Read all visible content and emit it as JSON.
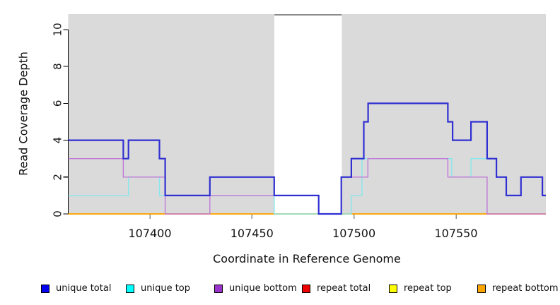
{
  "chart_data": {
    "type": "line",
    "subtype": "step-coverage",
    "title": "",
    "xlabel": "Coordinate in Reference Genome",
    "ylabel": "Read Coverage Depth",
    "x_range": [
      107360,
      107594
    ],
    "y_range": [
      0,
      10.84
    ],
    "x_ticks": [
      107400,
      107450,
      107500,
      107550
    ],
    "y_ticks": [
      0,
      2,
      4,
      6,
      8,
      10
    ],
    "grid": false,
    "legend_position": "bottom",
    "shaded_regions": [
      [
        107360,
        107461
      ],
      [
        107494,
        107594
      ]
    ],
    "gap_region": [
      107461,
      107494
    ],
    "colors": {
      "panel": "#DADADA",
      "gap_marker": "#8C8C8C",
      "x_tick": "#8C8C8C",
      "axis": "#000000",
      "background": "#FFFFFF"
    },
    "z_order": [
      "repeat total",
      "repeat top",
      "repeat bottom",
      "unique top",
      "unique bottom",
      "unique total"
    ],
    "series": [
      {
        "name": "unique total",
        "line_color": "#3030D2",
        "legend_color": "#0000EE",
        "line_width": 2.2,
        "steps": [
          [
            107360,
            4
          ],
          [
            107387,
            3
          ],
          [
            107389.5,
            4
          ],
          [
            107404.7,
            3
          ],
          [
            107407.5,
            1
          ],
          [
            107429.4,
            2
          ],
          [
            107460.9,
            1
          ],
          [
            107482.7,
            0
          ],
          [
            107493.8,
            2
          ],
          [
            107498.7,
            3
          ],
          [
            107504.8,
            5
          ],
          [
            107506.9,
            6
          ],
          [
            107546,
            5
          ],
          [
            107548.3,
            4
          ],
          [
            107557.3,
            5
          ],
          [
            107565.2,
            3
          ],
          [
            107569.8,
            2
          ],
          [
            107574.6,
            1
          ],
          [
            107581.8,
            2
          ],
          [
            107592.3,
            1
          ]
        ],
        "end_x": 107594
      },
      {
        "name": "unique top",
        "line_color": "#86E8EC",
        "legend_color": "#00FFFF",
        "line_width": 1.4,
        "steps": [
          [
            107360,
            1
          ],
          [
            107389.5,
            2
          ],
          [
            107404.7,
            1
          ],
          [
            107460.9,
            0
          ],
          [
            107498.7,
            1
          ],
          [
            107503.9,
            3
          ],
          [
            107547.9,
            2
          ],
          [
            107557.3,
            3
          ],
          [
            107569.8,
            2
          ],
          [
            107574.6,
            1
          ],
          [
            107581.8,
            2
          ],
          [
            107592.3,
            1
          ]
        ],
        "end_x": 107594
      },
      {
        "name": "unique bottom",
        "line_color": "#C07AD8",
        "legend_color": "#9933CC",
        "line_width": 1.4,
        "steps": [
          [
            107360,
            3
          ],
          [
            107387,
            2
          ],
          [
            107407.5,
            0
          ],
          [
            107429.4,
            1
          ],
          [
            107482.7,
            0
          ],
          [
            107493.8,
            2
          ],
          [
            107506.8,
            3
          ],
          [
            107546,
            2
          ],
          [
            107565.2,
            0
          ]
        ],
        "end_x": 107594
      },
      {
        "name": "repeat total",
        "line_color": "#CC0000",
        "legend_color": "#EE0000",
        "line_width": 1.4,
        "steps": [
          [
            107360,
            0
          ]
        ],
        "end_x": 107594
      },
      {
        "name": "repeat top",
        "line_color": "#FFEE00",
        "legend_color": "#FFFF00",
        "line_width": 1.4,
        "steps": [
          [
            107360,
            0
          ]
        ],
        "end_x": 107594
      },
      {
        "name": "repeat bottom",
        "line_color": "#FFA500",
        "legend_color": "#FFA500",
        "line_width": 1.6,
        "steps": [
          [
            107360,
            0
          ]
        ],
        "end_x": 107594
      }
    ]
  }
}
